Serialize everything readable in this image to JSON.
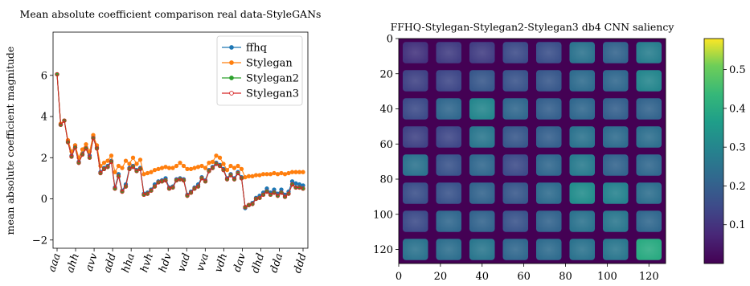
{
  "chart_data": [
    {
      "type": "line",
      "title": "Mean absolute coefficient comparison real data-StyleGANs",
      "xlabel": "",
      "ylabel": "mean absolute coefficient magnitude",
      "ylim": [
        -2.4,
        8.1
      ],
      "yticks": [
        -2,
        0,
        2,
        4,
        6
      ],
      "yticklabels": [
        "−2",
        "0",
        "2",
        "4",
        "6"
      ],
      "xticklabels": [
        "aaa",
        "ahh",
        "avv",
        "add",
        "hha",
        "hvh",
        "hdv",
        "vad",
        "vva",
        "vdh",
        "dav",
        "dhd",
        "dda",
        "ddd"
      ],
      "legend": "top-right",
      "series": [
        {
          "name": "ffhq",
          "color": "#1f77b4",
          "marker": "filled",
          "values": [
            6.05,
            3.6,
            3.8,
            2.8,
            2.1,
            2.6,
            1.8,
            2.2,
            2.5,
            2.1,
            3.0,
            2.5,
            1.3,
            1.5,
            1.6,
            1.85,
            0.55,
            1.2,
            0.4,
            0.7,
            1.5,
            1.6,
            1.4,
            1.5,
            0.25,
            0.3,
            0.45,
            0.7,
            0.85,
            0.9,
            1.0,
            0.55,
            0.6,
            0.95,
            1.0,
            0.95,
            0.2,
            0.35,
            0.55,
            0.7,
            1.05,
            0.9,
            1.4,
            1.55,
            1.75,
            1.65,
            1.45,
            1.0,
            1.2,
            1.0,
            1.3,
            1.05,
            -0.45,
            -0.3,
            -0.2,
            0.05,
            0.15,
            0.3,
            0.5,
            0.3,
            0.45,
            0.25,
            0.45,
            0.2,
            0.35,
            0.85,
            0.75,
            0.7,
            0.65
          ]
        },
        {
          "name": "Stylegan",
          "color": "#ff7f0e",
          "marker": "filled",
          "values": [
            6.05,
            3.65,
            3.8,
            2.85,
            2.3,
            2.6,
            2.0,
            2.4,
            2.65,
            2.3,
            3.1,
            2.6,
            1.6,
            1.75,
            1.85,
            2.1,
            1.3,
            1.6,
            1.5,
            1.85,
            1.7,
            2.0,
            1.7,
            1.9,
            1.2,
            1.25,
            1.3,
            1.4,
            1.45,
            1.5,
            1.55,
            1.5,
            1.5,
            1.6,
            1.75,
            1.6,
            1.45,
            1.45,
            1.5,
            1.55,
            1.6,
            1.5,
            1.75,
            1.8,
            2.1,
            2.0,
            1.7,
            1.4,
            1.6,
            1.5,
            1.6,
            1.45,
            1.05,
            1.1,
            1.1,
            1.15,
            1.15,
            1.2,
            1.2,
            1.2,
            1.25,
            1.2,
            1.25,
            1.2,
            1.25,
            1.3,
            1.3,
            1.3,
            1.3
          ]
        },
        {
          "name": "Stylegan2",
          "color": "#2ca02c",
          "marker": "filled",
          "values": [
            6.05,
            3.6,
            3.8,
            2.75,
            2.05,
            2.5,
            1.75,
            2.15,
            2.45,
            2.0,
            2.95,
            2.45,
            1.25,
            1.45,
            1.55,
            1.8,
            0.5,
            1.1,
            0.35,
            0.6,
            1.45,
            1.55,
            1.35,
            1.45,
            0.2,
            0.25,
            0.4,
            0.6,
            0.8,
            0.85,
            0.9,
            0.5,
            0.55,
            0.9,
            0.95,
            0.9,
            0.15,
            0.3,
            0.5,
            0.6,
            1.0,
            0.85,
            1.35,
            1.5,
            1.7,
            1.6,
            1.4,
            0.95,
            1.15,
            0.95,
            1.25,
            1.0,
            -0.4,
            -0.3,
            -0.25,
            0.0,
            0.05,
            0.2,
            0.35,
            0.2,
            0.3,
            0.15,
            0.3,
            0.1,
            0.25,
            0.7,
            0.55,
            0.55,
            0.5
          ]
        },
        {
          "name": "Stylegan3",
          "color": "#d62728",
          "marker": "open",
          "values": [
            6.05,
            3.6,
            3.8,
            2.75,
            2.05,
            2.5,
            1.75,
            2.15,
            2.45,
            2.0,
            2.95,
            2.45,
            1.25,
            1.45,
            1.55,
            1.8,
            0.5,
            1.1,
            0.35,
            0.6,
            1.45,
            1.55,
            1.35,
            1.45,
            0.2,
            0.25,
            0.4,
            0.6,
            0.8,
            0.85,
            0.9,
            0.5,
            0.55,
            0.9,
            0.95,
            0.9,
            0.15,
            0.3,
            0.5,
            0.6,
            1.0,
            0.85,
            1.35,
            1.5,
            1.7,
            1.6,
            1.4,
            0.95,
            1.15,
            0.95,
            1.25,
            1.0,
            -0.4,
            -0.3,
            -0.25,
            0.0,
            0.05,
            0.2,
            0.35,
            0.2,
            0.3,
            0.15,
            0.3,
            0.1,
            0.25,
            0.7,
            0.55,
            0.55,
            0.5
          ]
        }
      ]
    },
    {
      "type": "heatmap",
      "title": "FFHQ-Stylegan-Stylegan2-Stylegan3 db4 CNN saliency",
      "xlabel": "",
      "ylabel": "",
      "xlim": [
        0,
        128
      ],
      "ylim": [
        128,
        0
      ],
      "xticks": [
        0,
        20,
        40,
        60,
        80,
        100,
        120
      ],
      "yticks": [
        0,
        20,
        40,
        60,
        80,
        100,
        120
      ],
      "colormap": "viridis",
      "grid_rows": 8,
      "grid_cols": 8,
      "block_values": [
        [
          0.1,
          0.12,
          0.12,
          0.15,
          0.16,
          0.25,
          0.21,
          0.28
        ],
        [
          0.13,
          0.14,
          0.18,
          0.17,
          0.18,
          0.23,
          0.22,
          0.3
        ],
        [
          0.15,
          0.22,
          0.3,
          0.22,
          0.2,
          0.22,
          0.2,
          0.21
        ],
        [
          0.13,
          0.14,
          0.26,
          0.18,
          0.2,
          0.25,
          0.23,
          0.24
        ],
        [
          0.25,
          0.17,
          0.22,
          0.15,
          0.22,
          0.27,
          0.21,
          0.22
        ],
        [
          0.16,
          0.17,
          0.21,
          0.18,
          0.23,
          0.32,
          0.29,
          0.24
        ],
        [
          0.15,
          0.22,
          0.21,
          0.17,
          0.21,
          0.25,
          0.26,
          0.22
        ],
        [
          0.25,
          0.24,
          0.26,
          0.22,
          0.23,
          0.25,
          0.26,
          0.4
        ]
      ],
      "colorbar": {
        "ticks": [
          0.1,
          0.2,
          0.3,
          0.4,
          0.5
        ],
        "range": [
          0.0,
          0.58
        ]
      },
      "colors": {
        "bg": "#440154",
        "low": "#3b518b",
        "mid": "#21918c",
        "high": "#5ec962",
        "top": "#fde725"
      }
    }
  ]
}
